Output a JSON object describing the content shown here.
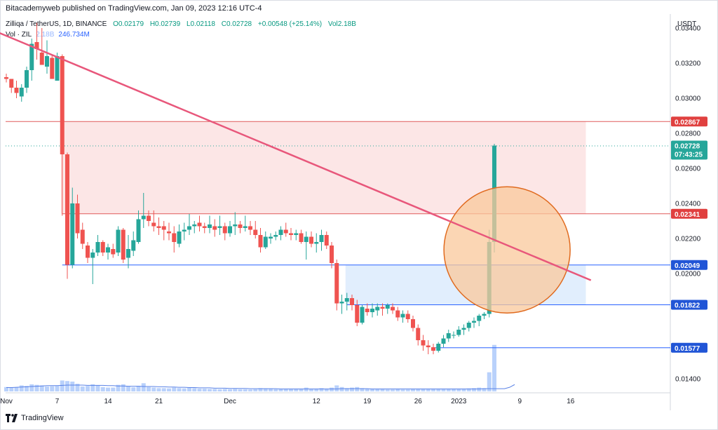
{
  "header": {
    "publisher": "Bitacademyweb published on TradingView.com, Jan 09, 2023 12:16 UTC-4",
    "symbol_line": "Zilliqa / TetherUS, 1D, BINANCE",
    "open": "O0.02179",
    "high": "H0.02739",
    "low": "L0.02118",
    "close": "C0.02728",
    "change": "+0.00548 (+25.14%)",
    "volume": "Vol2.18B",
    "vol_label": "Vol · ZIL",
    "vol_value": "2.18B",
    "vol_ma": "246.734M",
    "currency": "USDT"
  },
  "footer": {
    "brand": "TradingView"
  },
  "colors": {
    "up": "#26a69a",
    "down": "#ef5350",
    "resistance": "#e05a5a",
    "support": "#2962ff",
    "trendline": "#e8577b",
    "circle_fill": "#f9c89b",
    "circle_stroke": "#e06a1e",
    "volume": "#b9d1fb",
    "volume_ma": "#5a82e6"
  },
  "chart_data": {
    "type": "candlestick",
    "ylim": [
      0.0132,
      0.0348
    ],
    "price_ticks": [
      "0.01400",
      "0.02000",
      "0.02200",
      "0.02400",
      "0.02600",
      "0.02800",
      "0.03000",
      "0.03200",
      "0.03400"
    ],
    "time_ticks": [
      {
        "label": "Nov",
        "index": 0
      },
      {
        "label": "7",
        "index": 10
      },
      {
        "label": "14",
        "index": 20
      },
      {
        "label": "21",
        "index": 30
      },
      {
        "label": "Dec",
        "index": 44
      },
      {
        "label": "12",
        "index": 61
      },
      {
        "label": "19",
        "index": 71
      },
      {
        "label": "26",
        "index": 81
      },
      {
        "label": "2023",
        "index": 89
      },
      {
        "label": "9",
        "index": 101
      },
      {
        "label": "16",
        "index": 111
      }
    ],
    "candles": [
      {
        "o": 0.0312,
        "h": 0.0314,
        "l": 0.0309,
        "c": 0.0311,
        "v": 16
      },
      {
        "o": 0.0311,
        "h": 0.0311,
        "l": 0.0303,
        "c": 0.0306,
        "v": 14
      },
      {
        "o": 0.0306,
        "h": 0.031,
        "l": 0.03,
        "c": 0.0303,
        "v": 15
      },
      {
        "o": 0.0301,
        "h": 0.0308,
        "l": 0.0298,
        "c": 0.0306,
        "v": 22
      },
      {
        "o": 0.0306,
        "h": 0.0318,
        "l": 0.0303,
        "c": 0.0316,
        "v": 20
      },
      {
        "o": 0.0316,
        "h": 0.0334,
        "l": 0.031,
        "c": 0.0331,
        "v": 26
      },
      {
        "o": 0.0332,
        "h": 0.0343,
        "l": 0.0322,
        "c": 0.0328,
        "v": 24
      },
      {
        "o": 0.0326,
        "h": 0.034,
        "l": 0.0321,
        "c": 0.0319,
        "v": 22
      },
      {
        "o": 0.0318,
        "h": 0.0333,
        "l": 0.0314,
        "c": 0.0324,
        "v": 18
      },
      {
        "o": 0.0323,
        "h": 0.0325,
        "l": 0.0313,
        "c": 0.0311,
        "v": 19
      },
      {
        "o": 0.031,
        "h": 0.0326,
        "l": 0.031,
        "c": 0.0324,
        "v": 20
      },
      {
        "o": 0.0324,
        "h": 0.0325,
        "l": 0.0233,
        "c": 0.0268,
        "v": 40
      },
      {
        "o": 0.0268,
        "h": 0.0269,
        "l": 0.0197,
        "c": 0.0205,
        "v": 38
      },
      {
        "o": 0.0205,
        "h": 0.0249,
        "l": 0.0203,
        "c": 0.024,
        "v": 36
      },
      {
        "o": 0.024,
        "h": 0.0245,
        "l": 0.022,
        "c": 0.0223,
        "v": 28
      },
      {
        "o": 0.0225,
        "h": 0.0229,
        "l": 0.0214,
        "c": 0.0217,
        "v": 18
      },
      {
        "o": 0.0216,
        "h": 0.0218,
        "l": 0.0206,
        "c": 0.0209,
        "v": 20
      },
      {
        "o": 0.0209,
        "h": 0.0214,
        "l": 0.0194,
        "c": 0.0212,
        "v": 26
      },
      {
        "o": 0.0212,
        "h": 0.0222,
        "l": 0.021,
        "c": 0.0218,
        "v": 22
      },
      {
        "o": 0.0218,
        "h": 0.0219,
        "l": 0.021,
        "c": 0.0212,
        "v": 16
      },
      {
        "o": 0.0212,
        "h": 0.0217,
        "l": 0.0208,
        "c": 0.0215,
        "v": 14
      },
      {
        "o": 0.0214,
        "h": 0.0217,
        "l": 0.0209,
        "c": 0.0211,
        "v": 14
      },
      {
        "o": 0.0212,
        "h": 0.0227,
        "l": 0.021,
        "c": 0.0225,
        "v": 24
      },
      {
        "o": 0.0225,
        "h": 0.0226,
        "l": 0.0206,
        "c": 0.0208,
        "v": 26
      },
      {
        "o": 0.0209,
        "h": 0.0222,
        "l": 0.0203,
        "c": 0.0214,
        "v": 18
      },
      {
        "o": 0.0213,
        "h": 0.0224,
        "l": 0.021,
        "c": 0.0219,
        "v": 15
      },
      {
        "o": 0.0218,
        "h": 0.0236,
        "l": 0.0217,
        "c": 0.0231,
        "v": 20
      },
      {
        "o": 0.0231,
        "h": 0.0246,
        "l": 0.0226,
        "c": 0.0233,
        "v": 30
      },
      {
        "o": 0.0233,
        "h": 0.0236,
        "l": 0.0227,
        "c": 0.023,
        "v": 16
      },
      {
        "o": 0.0229,
        "h": 0.0236,
        "l": 0.0224,
        "c": 0.0227,
        "v": 14
      },
      {
        "o": 0.0227,
        "h": 0.0232,
        "l": 0.0222,
        "c": 0.0226,
        "v": 12
      },
      {
        "o": 0.0227,
        "h": 0.023,
        "l": 0.0219,
        "c": 0.0225,
        "v": 12
      },
      {
        "o": 0.0224,
        "h": 0.0229,
        "l": 0.0219,
        "c": 0.0223,
        "v": 11
      },
      {
        "o": 0.0223,
        "h": 0.0227,
        "l": 0.0212,
        "c": 0.0218,
        "v": 14
      },
      {
        "o": 0.0217,
        "h": 0.0228,
        "l": 0.0215,
        "c": 0.0224,
        "v": 12
      },
      {
        "o": 0.0224,
        "h": 0.0229,
        "l": 0.0219,
        "c": 0.0225,
        "v": 11
      },
      {
        "o": 0.0225,
        "h": 0.0234,
        "l": 0.0222,
        "c": 0.0227,
        "v": 13
      },
      {
        "o": 0.0227,
        "h": 0.023,
        "l": 0.0223,
        "c": 0.0228,
        "v": 12
      },
      {
        "o": 0.0229,
        "h": 0.0233,
        "l": 0.0224,
        "c": 0.0227,
        "v": 10
      },
      {
        "o": 0.0227,
        "h": 0.0229,
        "l": 0.0223,
        "c": 0.0226,
        "v": 10
      },
      {
        "o": 0.0226,
        "h": 0.0233,
        "l": 0.0223,
        "c": 0.0228,
        "v": 9
      },
      {
        "o": 0.0227,
        "h": 0.0231,
        "l": 0.0221,
        "c": 0.0225,
        "v": 9
      },
      {
        "o": 0.0226,
        "h": 0.0233,
        "l": 0.0222,
        "c": 0.0227,
        "v": 8
      },
      {
        "o": 0.0227,
        "h": 0.0229,
        "l": 0.0219,
        "c": 0.0223,
        "v": 9
      },
      {
        "o": 0.0223,
        "h": 0.023,
        "l": 0.0221,
        "c": 0.0227,
        "v": 8
      },
      {
        "o": 0.0227,
        "h": 0.0235,
        "l": 0.0222,
        "c": 0.0228,
        "v": 9
      },
      {
        "o": 0.0228,
        "h": 0.023,
        "l": 0.0223,
        "c": 0.0226,
        "v": 8
      },
      {
        "o": 0.0226,
        "h": 0.0233,
        "l": 0.0224,
        "c": 0.0227,
        "v": 8
      },
      {
        "o": 0.0227,
        "h": 0.023,
        "l": 0.0222,
        "c": 0.0225,
        "v": 7
      },
      {
        "o": 0.0225,
        "h": 0.023,
        "l": 0.022,
        "c": 0.0222,
        "v": 8
      },
      {
        "o": 0.0222,
        "h": 0.0226,
        "l": 0.0212,
        "c": 0.0215,
        "v": 12
      },
      {
        "o": 0.0215,
        "h": 0.0224,
        "l": 0.0214,
        "c": 0.0221,
        "v": 11
      },
      {
        "o": 0.022,
        "h": 0.0223,
        "l": 0.0217,
        "c": 0.0221,
        "v": 9
      },
      {
        "o": 0.0221,
        "h": 0.0224,
        "l": 0.0219,
        "c": 0.0222,
        "v": 8
      },
      {
        "o": 0.0222,
        "h": 0.0227,
        "l": 0.0219,
        "c": 0.0225,
        "v": 8
      },
      {
        "o": 0.0225,
        "h": 0.0229,
        "l": 0.0221,
        "c": 0.0223,
        "v": 9
      },
      {
        "o": 0.0223,
        "h": 0.0226,
        "l": 0.0219,
        "c": 0.0222,
        "v": 9
      },
      {
        "o": 0.0222,
        "h": 0.0225,
        "l": 0.0219,
        "c": 0.0223,
        "v": 8
      },
      {
        "o": 0.0223,
        "h": 0.0225,
        "l": 0.0217,
        "c": 0.0218,
        "v": 8
      },
      {
        "o": 0.0218,
        "h": 0.0224,
        "l": 0.0208,
        "c": 0.0221,
        "v": 14
      },
      {
        "o": 0.0221,
        "h": 0.0224,
        "l": 0.0215,
        "c": 0.0217,
        "v": 10
      },
      {
        "o": 0.0217,
        "h": 0.0223,
        "l": 0.0212,
        "c": 0.0218,
        "v": 10
      },
      {
        "o": 0.0218,
        "h": 0.0225,
        "l": 0.0213,
        "c": 0.0222,
        "v": 12
      },
      {
        "o": 0.0222,
        "h": 0.0224,
        "l": 0.0214,
        "c": 0.0216,
        "v": 10
      },
      {
        "o": 0.0216,
        "h": 0.0218,
        "l": 0.0203,
        "c": 0.0206,
        "v": 14
      },
      {
        "o": 0.0206,
        "h": 0.0208,
        "l": 0.0179,
        "c": 0.0183,
        "v": 22
      },
      {
        "o": 0.0183,
        "h": 0.0188,
        "l": 0.0177,
        "c": 0.0184,
        "v": 16
      },
      {
        "o": 0.0184,
        "h": 0.0189,
        "l": 0.0179,
        "c": 0.0186,
        "v": 12
      },
      {
        "o": 0.0186,
        "h": 0.0188,
        "l": 0.0179,
        "c": 0.0182,
        "v": 14
      },
      {
        "o": 0.0182,
        "h": 0.0185,
        "l": 0.017,
        "c": 0.0172,
        "v": 16
      },
      {
        "o": 0.0172,
        "h": 0.0182,
        "l": 0.0171,
        "c": 0.0181,
        "v": 12
      },
      {
        "o": 0.018,
        "h": 0.0183,
        "l": 0.0176,
        "c": 0.0178,
        "v": 10
      },
      {
        "o": 0.0178,
        "h": 0.0183,
        "l": 0.0175,
        "c": 0.018,
        "v": 9
      },
      {
        "o": 0.0179,
        "h": 0.0183,
        "l": 0.0176,
        "c": 0.0181,
        "v": 8
      },
      {
        "o": 0.0181,
        "h": 0.0183,
        "l": 0.0176,
        "c": 0.018,
        "v": 8
      },
      {
        "o": 0.018,
        "h": 0.0183,
        "l": 0.0177,
        "c": 0.0182,
        "v": 7
      },
      {
        "o": 0.0181,
        "h": 0.0183,
        "l": 0.0177,
        "c": 0.0179,
        "v": 7
      },
      {
        "o": 0.0179,
        "h": 0.0181,
        "l": 0.0173,
        "c": 0.0175,
        "v": 8
      },
      {
        "o": 0.0175,
        "h": 0.0179,
        "l": 0.0172,
        "c": 0.0177,
        "v": 7
      },
      {
        "o": 0.0177,
        "h": 0.0179,
        "l": 0.0172,
        "c": 0.0174,
        "v": 7
      },
      {
        "o": 0.0174,
        "h": 0.0176,
        "l": 0.0167,
        "c": 0.0169,
        "v": 8
      },
      {
        "o": 0.0169,
        "h": 0.0171,
        "l": 0.0159,
        "c": 0.0162,
        "v": 10
      },
      {
        "o": 0.0162,
        "h": 0.0165,
        "l": 0.0156,
        "c": 0.0159,
        "v": 9
      },
      {
        "o": 0.0159,
        "h": 0.0162,
        "l": 0.0154,
        "c": 0.0158,
        "v": 9
      },
      {
        "o": 0.0158,
        "h": 0.016,
        "l": 0.0154,
        "c": 0.0156,
        "v": 8
      },
      {
        "o": 0.0156,
        "h": 0.0161,
        "l": 0.0155,
        "c": 0.016,
        "v": 8
      },
      {
        "o": 0.016,
        "h": 0.0165,
        "l": 0.0158,
        "c": 0.0163,
        "v": 9
      },
      {
        "o": 0.0163,
        "h": 0.0168,
        "l": 0.0161,
        "c": 0.0166,
        "v": 10
      },
      {
        "o": 0.0165,
        "h": 0.0167,
        "l": 0.0163,
        "c": 0.0165,
        "v": 9
      },
      {
        "o": 0.0165,
        "h": 0.017,
        "l": 0.0164,
        "c": 0.0168,
        "v": 9
      },
      {
        "o": 0.0168,
        "h": 0.0171,
        "l": 0.0165,
        "c": 0.0169,
        "v": 10
      },
      {
        "o": 0.0169,
        "h": 0.0173,
        "l": 0.0167,
        "c": 0.0172,
        "v": 11
      },
      {
        "o": 0.0172,
        "h": 0.0175,
        "l": 0.0169,
        "c": 0.0173,
        "v": 12
      },
      {
        "o": 0.0173,
        "h": 0.0177,
        "l": 0.017,
        "c": 0.0176,
        "v": 14
      },
      {
        "o": 0.0176,
        "h": 0.0178,
        "l": 0.0174,
        "c": 0.0177,
        "v": 12
      },
      {
        "o": 0.0177,
        "h": 0.0225,
        "l": 0.0175,
        "c": 0.0218,
        "v": 70
      },
      {
        "o": 0.0218,
        "h": 0.0274,
        "l": 0.0212,
        "c": 0.0273,
        "v": 170
      }
    ],
    "levels": [
      {
        "price": 0.02867,
        "label": "0.02867",
        "kind": "resistance"
      },
      {
        "price": 0.02341,
        "label": "0.02341",
        "kind": "resistance"
      },
      {
        "price": 0.02049,
        "label": "0.02049",
        "kind": "support"
      },
      {
        "price": 0.01822,
        "label": "0.01822",
        "kind": "support"
      },
      {
        "price": 0.01577,
        "label": "0.01577",
        "kind": "support"
      }
    ],
    "last_price": {
      "price": 0.02728,
      "label": "0.02728",
      "countdown": "07:43:25"
    },
    "zones": [
      {
        "from_index": 11,
        "to_index": 114,
        "top": 0.02867,
        "bottom": 0.02341,
        "kind": "resistance"
      },
      {
        "from_index": 67,
        "to_index": 114,
        "top": 0.02049,
        "bottom": 0.01822,
        "kind": "support"
      }
    ],
    "trendline": {
      "from": {
        "index": -2,
        "price": 0.0338
      },
      "to": {
        "index": 115,
        "price": 0.01962
      }
    },
    "highlight_circle": {
      "index": 98.5,
      "price": 0.02135,
      "radius_price": 0.0036
    },
    "volume_ma_line": [
      14,
      14,
      15,
      16,
      17,
      18,
      19,
      20,
      21,
      21,
      21,
      22,
      23,
      23,
      23,
      23,
      22,
      22,
      22,
      22,
      21,
      21,
      20,
      20,
      19,
      19,
      19,
      18,
      18,
      18,
      17,
      17,
      16,
      16,
      15,
      15,
      14,
      14,
      13,
      13,
      13,
      12,
      12,
      12,
      11,
      11,
      11,
      11,
      10,
      10,
      10,
      10,
      10,
      10,
      9,
      9,
      9,
      9,
      9,
      9,
      9,
      9,
      9,
      9,
      9,
      9,
      10,
      10,
      10,
      10,
      10,
      10,
      9,
      9,
      9,
      9,
      9,
      9,
      9,
      9,
      9,
      9,
      9,
      9,
      9,
      9,
      9,
      9,
      9,
      9,
      9,
      9,
      9,
      9,
      10,
      10,
      10,
      10,
      10,
      15,
      25
    ]
  }
}
